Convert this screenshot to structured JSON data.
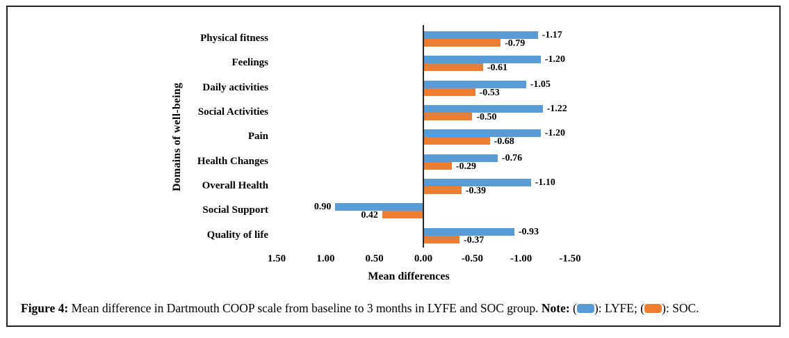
{
  "chart_data": {
    "type": "bar",
    "orientation": "horizontal",
    "title": "",
    "xlabel": "Mean differences",
    "ylabel": "Domains of well-being",
    "xlim": [
      1.5,
      -1.5
    ],
    "axis_reversed": true,
    "grid": false,
    "x_ticks": [
      "1.50",
      "1.00",
      "0.50",
      "0.00",
      "-0.50",
      "-1.00",
      "-1.50"
    ],
    "categories": [
      "Physical fitness",
      "Feelings",
      "Daily activities",
      "Social Activities",
      "Pain",
      "Health Changes",
      "Overall Health",
      "Social Support",
      "Quality of life"
    ],
    "series": [
      {
        "name": "LYFE",
        "color": "#5B9BD5",
        "values": [
          -1.17,
          -1.2,
          -1.05,
          -1.22,
          -1.2,
          -0.76,
          -1.1,
          0.9,
          -0.93
        ],
        "labels": [
          "-1.17",
          "-1.20",
          "-1.05",
          "-1.22",
          "-1.20",
          "-0.76",
          "-1.10",
          "0.90",
          "-0.93"
        ]
      },
      {
        "name": "SOC",
        "color": "#ED7D31",
        "values": [
          -0.79,
          -0.61,
          -0.53,
          -0.5,
          -0.68,
          -0.29,
          -0.39,
          0.42,
          -0.37
        ],
        "labels": [
          "-0.79",
          "-0.61",
          "-0.53",
          "-0.50",
          "-0.68",
          "-0.29",
          "-0.39",
          "0.42",
          "-0.37"
        ]
      }
    ]
  },
  "caption": {
    "figure_label": "Figure 4:",
    "body": " Mean difference in Dartmouth COOP scale from baseline to 3 months in LYFE and SOC group. ",
    "note_label": "Note:",
    "note_parts": [
      {
        "before": " (",
        "color": "#5B9BD5",
        "after": "): LYFE; "
      },
      {
        "before": "(",
        "color": "#ED7D31",
        "after": "): SOC."
      }
    ]
  },
  "colors": {
    "lyfe": "#5B9BD5",
    "soc": "#ED7D31",
    "axis": "#262626",
    "frame": "#222222"
  }
}
